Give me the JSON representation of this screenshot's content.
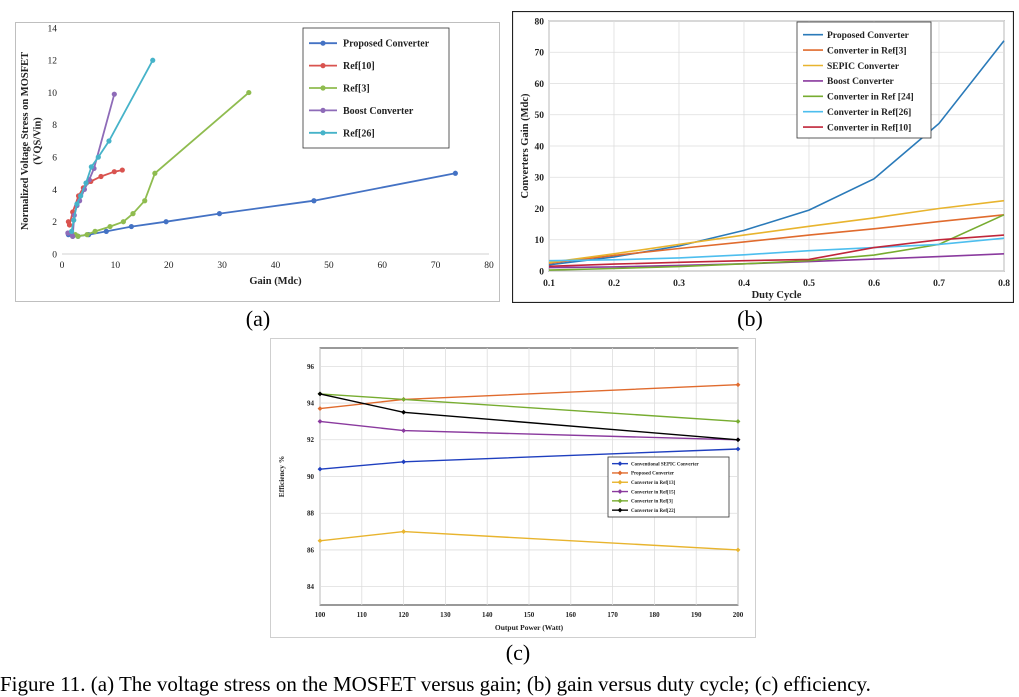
{
  "panel_labels": [
    "(a)",
    "(b)",
    "(c)"
  ],
  "caption_fragment": "Figure 11. (a) The voltage stress on the MOSFET versus gain; (b) gain versus duty cycle; (c) efficiency.",
  "chart_data": [
    {
      "id": "a",
      "type": "line",
      "title": "",
      "xlabel": "Gain (Mdc)",
      "ylabel": "Normalized Voltage Stress on MOSFET (VQS/Vin)",
      "xlim": [
        0,
        80
      ],
      "ylim": [
        0,
        14
      ],
      "xticks": [
        0,
        10,
        20,
        30,
        40,
        50,
        60,
        70,
        80
      ],
      "yticks": [
        0,
        2,
        4,
        6,
        8,
        10,
        12,
        14
      ],
      "grid": false,
      "legend_position": "top-right",
      "series": [
        {
          "name": "Proposed Converter",
          "color": "#4472c4",
          "points": [
            [
              1.2,
              1.2
            ],
            [
              2.0,
              1.1
            ],
            [
              3.0,
              1.1
            ],
            [
              5.0,
              1.2
            ],
            [
              8.3,
              1.4
            ],
            [
              13.0,
              1.7
            ],
            [
              19.5,
              2.0
            ],
            [
              29.5,
              2.5
            ],
            [
              47.2,
              3.3
            ],
            [
              73.7,
              5.0
            ]
          ]
        },
        {
          "name": "Ref[10]",
          "color": "#d9534f",
          "points": [
            [
              1.2,
              2.0
            ],
            [
              1.4,
              1.8
            ],
            [
              2.0,
              2.6
            ],
            [
              3.1,
              3.6
            ],
            [
              4.0,
              4.1
            ],
            [
              5.4,
              4.5
            ],
            [
              7.3,
              4.8
            ],
            [
              9.8,
              5.1
            ],
            [
              11.3,
              5.2
            ]
          ]
        },
        {
          "name": "Ref[3]",
          "color": "#8fbc4f",
          "points": [
            [
              2.0,
              1.1
            ],
            [
              2.5,
              1.2
            ],
            [
              3.0,
              1.1
            ],
            [
              4.7,
              1.2
            ],
            [
              6.2,
              1.4
            ],
            [
              9.0,
              1.7
            ],
            [
              11.5,
              2.0
            ],
            [
              13.3,
              2.5
            ],
            [
              15.5,
              3.3
            ],
            [
              17.4,
              5.0
            ],
            [
              35.0,
              10.0
            ]
          ]
        },
        {
          "name": "Boost Converter",
          "color": "#8e6bb8",
          "points": [
            [
              1.1,
              1.3
            ],
            [
              2.0,
              1.1
            ],
            [
              2.3,
              2.4
            ],
            [
              2.8,
              3.0
            ],
            [
              3.3,
              3.3
            ],
            [
              4.2,
              4.0
            ],
            [
              5.1,
              4.6
            ],
            [
              6.0,
              5.3
            ],
            [
              9.8,
              9.9
            ]
          ]
        },
        {
          "name": "Ref[26]",
          "color": "#46b3c9",
          "points": [
            [
              1.8,
              1.4
            ],
            [
              2.2,
              2.1
            ],
            [
              2.8,
              3.1
            ],
            [
              3.5,
              3.6
            ],
            [
              4.5,
              4.4
            ],
            [
              5.5,
              5.4
            ],
            [
              6.8,
              6.0
            ],
            [
              8.8,
              7.0
            ],
            [
              17.0,
              12.0
            ]
          ]
        }
      ]
    },
    {
      "id": "b",
      "type": "line",
      "title": "",
      "xlabel": "Duty Cycle",
      "ylabel": "Converters Gain (Mdc)",
      "xlim": [
        0.1,
        0.8
      ],
      "ylim": [
        0,
        80
      ],
      "xticks": [
        0.1,
        0.2,
        0.3,
        0.4,
        0.5,
        0.6,
        0.7,
        0.8
      ],
      "yticks": [
        0,
        10,
        20,
        30,
        40,
        50,
        60,
        70,
        80
      ],
      "grid": true,
      "legend_position": "top-left",
      "x": [
        0.1,
        0.2,
        0.3,
        0.4,
        0.5,
        0.6,
        0.7,
        0.8
      ],
      "series": [
        {
          "name": "Proposed Converter",
          "color": "#2a7ab9",
          "values": [
            2.0,
            4.5,
            8.0,
            13.0,
            19.5,
            29.5,
            47.2,
            73.7
          ]
        },
        {
          "name": "Converter in Ref[3]",
          "color": "#e06b2e",
          "values": [
            2.5,
            5.0,
            7.2,
            9.3,
            11.5,
            13.5,
            15.8,
            18.0
          ]
        },
        {
          "name": "SEPIC Converter",
          "color": "#e8b42e",
          "values": [
            2.7,
            5.5,
            8.5,
            11.5,
            14.3,
            17.0,
            20.0,
            22.5
          ]
        },
        {
          "name": "Boost Converter",
          "color": "#8a3a9e",
          "values": [
            1.1,
            1.3,
            1.8,
            2.3,
            3.0,
            3.8,
            4.6,
            5.5
          ]
        },
        {
          "name": "Converter in Ref [24]",
          "color": "#77ac30",
          "values": [
            0.3,
            0.8,
            1.4,
            2.3,
            3.3,
            5.1,
            8.5,
            18.0
          ]
        },
        {
          "name": "Converter in Ref[26]",
          "color": "#4dbeee",
          "values": [
            3.3,
            3.6,
            4.2,
            5.2,
            6.5,
            7.5,
            8.5,
            10.5
          ]
        },
        {
          "name": "Converter in Ref[10]",
          "color": "#c0263a",
          "values": [
            1.5,
            2.2,
            2.8,
            3.3,
            3.7,
            7.5,
            10.0,
            11.5
          ]
        }
      ]
    },
    {
      "id": "c",
      "type": "line",
      "title": "",
      "xlabel": "Output Power (Watt)",
      "ylabel": "Efficiency %",
      "xlim": [
        100,
        200
      ],
      "ylim": [
        83,
        97
      ],
      "xticks": [
        100,
        110,
        120,
        130,
        140,
        150,
        160,
        170,
        180,
        190,
        200
      ],
      "yticks": [
        84,
        86,
        88,
        90,
        92,
        94,
        96
      ],
      "grid": true,
      "legend_position": "center-right",
      "x": [
        100,
        120,
        200
      ],
      "series": [
        {
          "name": "Conventional SEPIC Converter",
          "color": "#1f3fbf",
          "values": [
            90.4,
            90.8,
            91.5
          ]
        },
        {
          "name": "Proposed Converter",
          "color": "#e06b2e",
          "values": [
            93.7,
            94.2,
            95.0
          ]
        },
        {
          "name": "Converter in Ref[13]",
          "color": "#e8b42e",
          "values": [
            86.5,
            87.0,
            86.0
          ]
        },
        {
          "name": "Converter in Ref[15]",
          "color": "#8a3a9e",
          "values": [
            93.0,
            92.5,
            92.0
          ]
        },
        {
          "name": "Converter in Ref[3]",
          "color": "#77ac30",
          "values": [
            94.5,
            94.2,
            93.0
          ]
        },
        {
          "name": "Converter in Ref[22]",
          "color": "#000000",
          "values": [
            94.5,
            93.5,
            92.0
          ]
        }
      ]
    }
  ]
}
